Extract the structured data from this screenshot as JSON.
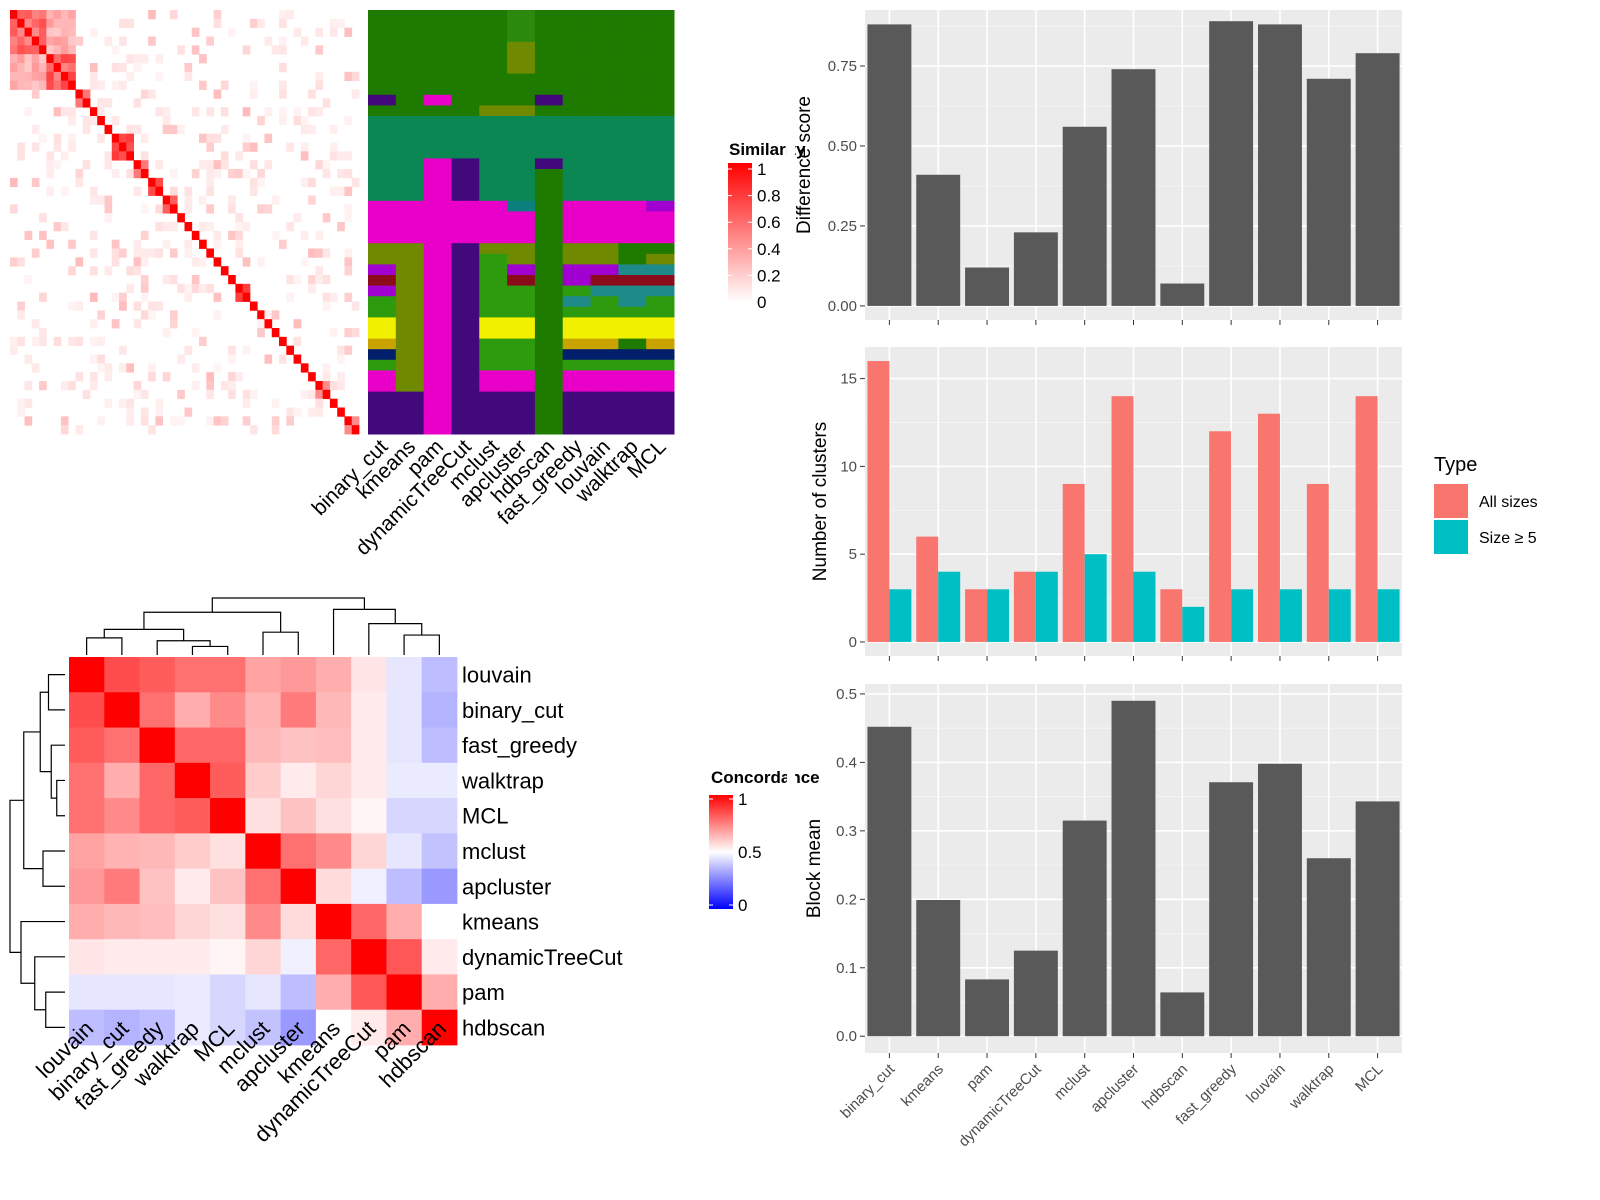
{
  "chart_data": [
    {
      "type": "heatmap",
      "panel": "similarity-heatmap",
      "legend_title": "Similarity",
      "legend_ticks": [
        "1",
        "0.8",
        "0.6",
        "0.4",
        "0.2",
        "0"
      ],
      "color_low": "#ffffff",
      "color_high": "#ff0000",
      "n": 48,
      "blocks": [
        [
          0,
          5
        ],
        [
          5,
          9
        ],
        [
          9,
          11
        ],
        [
          11,
          12
        ],
        [
          12,
          13
        ],
        [
          13,
          14
        ],
        [
          14,
          17
        ],
        [
          17,
          19
        ],
        [
          19,
          21
        ],
        [
          21,
          23
        ],
        [
          23,
          24
        ],
        [
          24,
          25
        ],
        [
          25,
          26
        ],
        [
          26,
          27
        ],
        [
          27,
          28
        ],
        [
          28,
          29
        ],
        [
          29,
          30
        ],
        [
          30,
          31
        ],
        [
          31,
          33
        ],
        [
          33,
          34
        ],
        [
          34,
          35
        ],
        [
          35,
          36
        ],
        [
          36,
          37
        ],
        [
          37,
          38
        ],
        [
          38,
          39
        ],
        [
          39,
          40
        ],
        [
          40,
          41
        ],
        [
          41,
          42
        ],
        [
          42,
          44
        ],
        [
          44,
          45
        ],
        [
          45,
          46
        ],
        [
          46,
          48
        ]
      ]
    },
    {
      "type": "heatmap",
      "panel": "partition-heatmap",
      "columns": [
        "binary_cut",
        "kmeans",
        "pam",
        "dynamicTreeCut",
        "mclust",
        "apcluster",
        "hdbscan",
        "fast_greedy",
        "louvain",
        "walktrap",
        "MCL"
      ],
      "palette": [
        "#1f7a00",
        "#2b8a0c",
        "#0a8753",
        "#6f8a00",
        "#41097c",
        "#e900c8",
        "#8a0c1b",
        "#2e9b0f",
        "#f0f000",
        "#c9a400",
        "#011f6b",
        "#0c7f7f",
        "#1e8a8a",
        "#a000d0"
      ],
      "rows": [
        [
          0,
          0,
          0,
          0,
          0,
          1,
          0,
          0,
          0,
          0,
          0
        ],
        [
          0,
          0,
          0,
          0,
          0,
          1,
          0,
          0,
          0,
          0,
          0
        ],
        [
          0,
          0,
          0,
          0,
          0,
          1,
          0,
          0,
          0,
          0,
          0
        ],
        [
          0,
          0,
          0,
          0,
          0,
          3,
          0,
          0,
          0,
          0,
          0
        ],
        [
          0,
          0,
          0,
          0,
          0,
          3,
          0,
          0,
          0,
          0,
          0
        ],
        [
          0,
          0,
          0,
          0,
          0,
          3,
          0,
          0,
          0,
          0,
          0
        ],
        [
          0,
          0,
          0,
          0,
          0,
          0,
          0,
          0,
          0,
          0,
          0
        ],
        [
          0,
          0,
          0,
          0,
          0,
          0,
          0,
          0,
          0,
          0,
          0
        ],
        [
          4,
          0,
          5,
          0,
          0,
          0,
          4,
          0,
          0,
          0,
          0
        ],
        [
          0,
          0,
          0,
          0,
          3,
          3,
          0,
          0,
          0,
          0,
          0
        ],
        [
          2,
          2,
          2,
          2,
          2,
          2,
          2,
          2,
          2,
          2,
          2
        ],
        [
          2,
          2,
          2,
          2,
          2,
          2,
          2,
          2,
          2,
          2,
          2
        ],
        [
          2,
          2,
          2,
          2,
          2,
          2,
          2,
          2,
          2,
          2,
          2
        ],
        [
          2,
          2,
          2,
          2,
          2,
          2,
          2,
          2,
          2,
          2,
          2
        ],
        [
          2,
          2,
          5,
          4,
          2,
          2,
          4,
          2,
          2,
          2,
          2
        ],
        [
          2,
          2,
          5,
          4,
          2,
          2,
          0,
          2,
          2,
          2,
          2
        ],
        [
          2,
          2,
          5,
          4,
          2,
          2,
          0,
          2,
          2,
          2,
          2
        ],
        [
          2,
          2,
          5,
          4,
          2,
          2,
          0,
          2,
          2,
          2,
          2
        ],
        [
          5,
          5,
          5,
          5,
          5,
          11,
          0,
          5,
          5,
          5,
          13
        ],
        [
          5,
          5,
          5,
          5,
          5,
          5,
          0,
          5,
          5,
          5,
          5
        ],
        [
          5,
          5,
          5,
          5,
          5,
          5,
          0,
          5,
          5,
          5,
          5
        ],
        [
          5,
          5,
          5,
          5,
          5,
          5,
          0,
          5,
          5,
          5,
          5
        ],
        [
          3,
          3,
          5,
          4,
          3,
          3,
          0,
          3,
          3,
          0,
          0
        ],
        [
          3,
          3,
          5,
          4,
          7,
          3,
          0,
          3,
          3,
          0,
          3
        ],
        [
          13,
          3,
          5,
          4,
          7,
          13,
          0,
          13,
          13,
          12,
          12
        ],
        [
          6,
          3,
          5,
          4,
          7,
          6,
          0,
          13,
          6,
          6,
          6
        ],
        [
          13,
          3,
          5,
          4,
          7,
          7,
          0,
          7,
          12,
          12,
          12
        ],
        [
          7,
          3,
          5,
          4,
          7,
          7,
          0,
          12,
          7,
          12,
          7
        ],
        [
          7,
          3,
          5,
          4,
          7,
          7,
          0,
          7,
          7,
          7,
          7
        ],
        [
          8,
          3,
          5,
          4,
          8,
          8,
          0,
          8,
          8,
          8,
          8
        ],
        [
          8,
          3,
          5,
          4,
          8,
          8,
          0,
          8,
          8,
          8,
          8
        ],
        [
          9,
          3,
          5,
          4,
          7,
          7,
          0,
          9,
          9,
          0,
          9
        ],
        [
          10,
          3,
          5,
          4,
          7,
          7,
          0,
          10,
          10,
          10,
          10
        ],
        [
          7,
          3,
          5,
          4,
          7,
          7,
          0,
          7,
          7,
          7,
          7
        ],
        [
          5,
          3,
          5,
          4,
          5,
          5,
          0,
          5,
          5,
          5,
          5
        ],
        [
          5,
          3,
          5,
          4,
          5,
          5,
          0,
          5,
          5,
          5,
          5
        ],
        [
          4,
          4,
          5,
          4,
          4,
          4,
          0,
          4,
          4,
          4,
          4
        ],
        [
          4,
          4,
          5,
          4,
          4,
          4,
          0,
          4,
          4,
          4,
          4
        ],
        [
          4,
          4,
          5,
          4,
          4,
          4,
          0,
          4,
          4,
          4,
          4
        ],
        [
          4,
          4,
          5,
          4,
          4,
          4,
          0,
          4,
          4,
          4,
          4
        ]
      ]
    },
    {
      "type": "heatmap",
      "panel": "concordance-heatmap",
      "legend_title": "Concordance",
      "legend_ticks": [
        "1",
        "0.5",
        "0"
      ],
      "labels": [
        "louvain",
        "binary_cut",
        "fast_greedy",
        "walktrap",
        "MCL",
        "mclust",
        "apcluster",
        "kmeans",
        "dynamicTreeCut",
        "pam",
        "hdbscan"
      ],
      "matrix": [
        [
          1.0,
          0.85,
          0.82,
          0.78,
          0.78,
          0.68,
          0.7,
          0.66,
          0.55,
          0.45,
          0.37
        ],
        [
          0.85,
          1.0,
          0.78,
          0.66,
          0.73,
          0.65,
          0.76,
          0.64,
          0.54,
          0.45,
          0.35
        ],
        [
          0.82,
          0.78,
          1.0,
          0.8,
          0.8,
          0.64,
          0.62,
          0.63,
          0.54,
          0.45,
          0.37
        ],
        [
          0.78,
          0.66,
          0.8,
          1.0,
          0.82,
          0.6,
          0.54,
          0.58,
          0.54,
          0.46,
          0.46
        ],
        [
          0.78,
          0.73,
          0.8,
          0.82,
          1.0,
          0.56,
          0.62,
          0.56,
          0.52,
          0.42,
          0.42
        ],
        [
          0.68,
          0.65,
          0.64,
          0.6,
          0.56,
          1.0,
          0.78,
          0.73,
          0.58,
          0.45,
          0.38
        ],
        [
          0.7,
          0.76,
          0.62,
          0.54,
          0.62,
          0.78,
          1.0,
          0.57,
          0.47,
          0.37,
          0.3
        ],
        [
          0.66,
          0.64,
          0.63,
          0.58,
          0.56,
          0.73,
          0.57,
          1.0,
          0.8,
          0.66,
          0.5
        ],
        [
          0.55,
          0.54,
          0.54,
          0.54,
          0.52,
          0.58,
          0.47,
          0.8,
          1.0,
          0.83,
          0.54
        ],
        [
          0.45,
          0.45,
          0.45,
          0.46,
          0.42,
          0.45,
          0.37,
          0.66,
          0.83,
          1.0,
          0.66
        ],
        [
          0.37,
          0.35,
          0.37,
          0.46,
          0.42,
          0.38,
          0.3,
          0.5,
          0.54,
          0.66,
          1.0
        ]
      ],
      "color_low": "#0000ff",
      "color_mid": "#ffffff",
      "color_high": "#ff0000"
    },
    {
      "type": "bar",
      "panel": "difference-score",
      "categories": [
        "binary_cut",
        "kmeans",
        "pam",
        "dynamicTreeCut",
        "mclust",
        "apcluster",
        "hdbscan",
        "fast_greedy",
        "louvain",
        "walktrap",
        "MCL"
      ],
      "values": [
        0.88,
        0.41,
        0.12,
        0.23,
        0.56,
        0.74,
        0.07,
        0.89,
        0.88,
        0.71,
        0.79
      ],
      "ylabel": "Difference score",
      "ylim": [
        -0.044,
        0.925
      ],
      "yticks": [
        0,
        0.25,
        0.5,
        0.75
      ],
      "ytick_labels": [
        "0.00",
        "0.25",
        "0.50",
        "0.75"
      ],
      "bar_color": "#595959",
      "grid": true
    },
    {
      "type": "bar",
      "panel": "number-of-clusters",
      "categories": [
        "binary_cut",
        "kmeans",
        "pam",
        "dynamicTreeCut",
        "mclust",
        "apcluster",
        "hdbscan",
        "fast_greedy",
        "louvain",
        "walktrap",
        "MCL"
      ],
      "series": [
        {
          "name": "All sizes",
          "values": [
            16,
            6,
            3,
            4,
            9,
            14,
            3,
            12,
            13,
            9,
            14
          ],
          "color": "#f8766d"
        },
        {
          "name": "Size ≥ 5",
          "values": [
            3,
            4,
            3,
            4,
            5,
            4,
            2,
            3,
            3,
            3,
            3
          ],
          "color": "#00bfc4"
        }
      ],
      "ylabel": "Number of clusters",
      "ylim": [
        -0.8,
        16.8
      ],
      "yticks": [
        0,
        5,
        10,
        15
      ],
      "ytick_labels": [
        "0",
        "5",
        "10",
        "15"
      ],
      "legend_title": "Type",
      "legend_position": "right",
      "grid": true
    },
    {
      "type": "bar",
      "panel": "block-mean",
      "categories": [
        "binary_cut",
        "kmeans",
        "pam",
        "dynamicTreeCut",
        "mclust",
        "apcluster",
        "hdbscan",
        "fast_greedy",
        "louvain",
        "walktrap",
        "MCL"
      ],
      "values": [
        0.452,
        0.199,
        0.083,
        0.125,
        0.315,
        0.49,
        0.064,
        0.371,
        0.398,
        0.26,
        0.343
      ],
      "ylabel": "Block mean",
      "ylim": [
        -0.0245,
        0.5145
      ],
      "yticks": [
        0,
        0.1,
        0.2,
        0.3,
        0.4,
        0.5
      ],
      "ytick_labels": [
        "0.0",
        "0.1",
        "0.2",
        "0.3",
        "0.4",
        "0.5"
      ],
      "bar_color": "#595959",
      "grid": true
    }
  ]
}
